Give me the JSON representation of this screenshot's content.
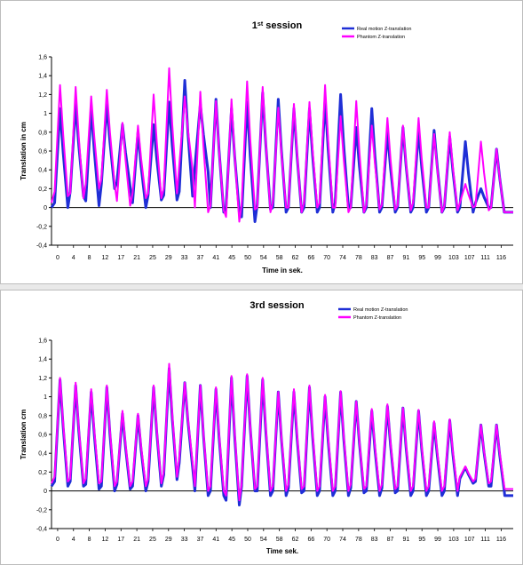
{
  "chart_data": [
    {
      "type": "line",
      "title": "1st session",
      "title_main": "1",
      "title_sup": "st",
      "title_rest": " session",
      "xlabel": "Time in sek.",
      "ylabel": "Translation in cm",
      "ylim": [
        -0.4,
        1.6
      ],
      "yticks": [
        "-0,4",
        "-0,2",
        "0",
        "0,2",
        "0,4",
        "0,6",
        "0,8",
        "1",
        "1,2",
        "1,4",
        "1,6"
      ],
      "xticks": [
        "0",
        "4",
        "8",
        "12",
        "17",
        "21",
        "25",
        "29",
        "33",
        "37",
        "41",
        "45",
        "50",
        "54",
        "58",
        "62",
        "66",
        "70",
        "74",
        "78",
        "83",
        "87",
        "91",
        "95",
        "99",
        "103",
        "107",
        "111",
        "116"
      ],
      "xlim": [
        0,
        119
      ],
      "legend_position": "top-right",
      "colors": {
        "real": "#1f2fd6",
        "phantom": "#ff00ff"
      },
      "series": [
        {
          "name": "Real motion Z-translation",
          "peaks": [
            1.05,
            1.1,
            1.05,
            1.1,
            0.88,
            0.8,
            0.88,
            1.12,
            1.35,
            1.1,
            1.15,
            1.05,
            1.12,
            1.22,
            1.15,
            1.05,
            1.05,
            1.15,
            1.2,
            0.85,
            1.05,
            0.8,
            0.85,
            0.82,
            0.82,
            0.75,
            0.7,
            0.2,
            0.62
          ],
          "troughs": [
            0.0,
            0.12,
            0.02,
            0.2,
            0.22,
            0.0,
            0.08,
            0.08,
            0.12,
            0.38,
            -0.05,
            -0.05,
            -0.15,
            -0.02,
            -0.05,
            -0.05,
            -0.05,
            -0.05,
            0.0,
            -0.05,
            -0.05,
            -0.05,
            -0.05,
            -0.05,
            -0.05,
            -0.05,
            -0.05,
            0.0,
            -0.05
          ],
          "start": 0.0,
          "end": -0.05
        },
        {
          "name": "Phantom Z-translation",
          "peaks": [
            1.3,
            1.28,
            1.18,
            1.25,
            0.9,
            0.87,
            1.2,
            1.48,
            1.18,
            1.23,
            1.13,
            1.15,
            1.34,
            1.28,
            1.06,
            1.1,
            1.12,
            1.3,
            0.97,
            1.13,
            0.87,
            0.95,
            0.87,
            0.95,
            0.78,
            0.8,
            0.25,
            0.7,
            0.62
          ],
          "troughs": [
            0.12,
            0.1,
            0.2,
            0.25,
            0.02,
            0.1,
            0.1,
            0.15,
            0.4,
            -0.05,
            -0.03,
            -0.15,
            -0.02,
            -0.05,
            0.0,
            -0.05,
            0.0,
            0.0,
            -0.05,
            -0.05,
            -0.02,
            -0.02,
            -0.03,
            0.0,
            -0.05,
            -0.03,
            0.0,
            -0.03,
            -0.05
          ],
          "start": 0.05,
          "end": -0.05
        }
      ]
    },
    {
      "type": "line",
      "title": "3rd session",
      "title_main": "3rd session",
      "title_sup": "",
      "title_rest": "",
      "xlabel": "Time sek.",
      "ylabel": "Translation cm",
      "ylim": [
        -0.4,
        1.6
      ],
      "yticks": [
        "-0,4",
        "-0,2",
        "0",
        "0,2",
        "0,4",
        "0,6",
        "0,8",
        "1",
        "1,2",
        "1,4",
        "1,6"
      ],
      "xticks": [
        "0",
        "4",
        "8",
        "12",
        "17",
        "21",
        "25",
        "29",
        "33",
        "37",
        "41",
        "45",
        "50",
        "54",
        "58",
        "62",
        "66",
        "70",
        "74",
        "78",
        "83",
        "87",
        "91",
        "95",
        "99",
        "103",
        "107",
        "111",
        "116"
      ],
      "xlim": [
        0,
        119
      ],
      "legend_position": "top-right",
      "colors": {
        "real": "#1f2fd6",
        "phantom": "#ff00ff"
      },
      "series": [
        {
          "name": "Real motion Z-translation",
          "peaks": [
            1.18,
            1.12,
            1.05,
            1.1,
            0.82,
            0.8,
            1.1,
            1.3,
            1.15,
            1.12,
            1.08,
            1.2,
            1.22,
            1.18,
            1.05,
            1.05,
            1.1,
            1.0,
            1.05,
            0.95,
            0.85,
            0.9,
            0.88,
            0.85,
            0.72,
            0.75,
            0.25,
            0.7,
            0.7
          ],
          "troughs": [
            0.05,
            0.05,
            0.02,
            0.0,
            0.02,
            0.0,
            0.05,
            0.12,
            0.25,
            -0.05,
            -0.05,
            -0.15,
            0.0,
            -0.05,
            -0.05,
            -0.02,
            -0.05,
            -0.05,
            -0.05,
            -0.02,
            -0.05,
            -0.02,
            -0.05,
            -0.05,
            -0.05,
            -0.05,
            0.08,
            0.05,
            0.0
          ],
          "start": 0.05,
          "end": -0.05
        },
        {
          "name": "Phantom Z-translation",
          "peaks": [
            1.2,
            1.15,
            1.08,
            1.12,
            0.85,
            0.82,
            1.12,
            1.35,
            1.15,
            1.12,
            1.1,
            1.22,
            1.24,
            1.2,
            1.05,
            1.08,
            1.12,
            1.02,
            1.06,
            0.95,
            0.87,
            0.92,
            0.88,
            0.86,
            0.74,
            0.76,
            0.26,
            0.7,
            0.7
          ],
          "troughs": [
            0.1,
            0.08,
            0.08,
            0.05,
            0.05,
            0.05,
            0.08,
            0.15,
            0.3,
            0.0,
            0.0,
            -0.1,
            0.02,
            0.0,
            0.0,
            0.02,
            0.0,
            0.0,
            0.0,
            0.02,
            0.0,
            0.02,
            0.0,
            0.0,
            0.0,
            0.0,
            0.1,
            0.08,
            0.05
          ],
          "start": 0.08,
          "end": 0.02
        }
      ]
    }
  ]
}
